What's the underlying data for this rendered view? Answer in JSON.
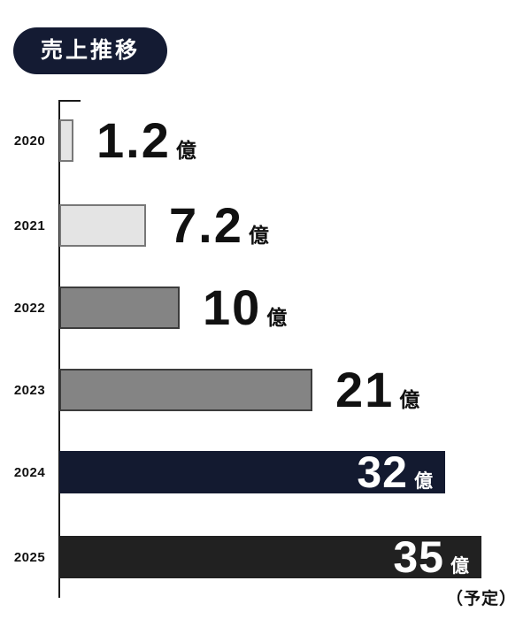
{
  "title_badge": {
    "label": "売上推移"
  },
  "footnote": "（予定）",
  "colors": {
    "badge_bg": "#141b33",
    "badge_text": "#ffffff",
    "bar_light": "#e4e4e4",
    "bar_light_border": "#787878",
    "bar_gray": "#848484",
    "bar_gray_border": "#3c3c3c",
    "bar_navy": "#131a30",
    "bar_black": "#212121",
    "value_text_dark": "#111111",
    "value_text_light": "#ffffff",
    "axis": "#1a1a1a"
  },
  "chart_data": {
    "type": "bar",
    "orientation": "horizontal",
    "title": "売上推移",
    "unit": "億",
    "categories": [
      "2020",
      "2021",
      "2022",
      "2023",
      "2024",
      "2025"
    ],
    "values": [
      1.2,
      7.2,
      10,
      21,
      32,
      35
    ],
    "xlim": [
      0,
      35
    ],
    "grid": false,
    "legend": false,
    "annotations": [
      "（予定）"
    ],
    "rows": [
      {
        "year": "2020",
        "value": 1.2,
        "value_label": "1.2",
        "unit": "億",
        "style": "light",
        "label_position": "outside"
      },
      {
        "year": "2021",
        "value": 7.2,
        "value_label": "7.2",
        "unit": "億",
        "style": "light",
        "label_position": "outside"
      },
      {
        "year": "2022",
        "value": 10,
        "value_label": "10",
        "unit": "億",
        "style": "gray",
        "label_position": "outside"
      },
      {
        "year": "2023",
        "value": 21,
        "value_label": "21",
        "unit": "億",
        "style": "gray",
        "label_position": "outside"
      },
      {
        "year": "2024",
        "value": 32,
        "value_label": "32",
        "unit": "億",
        "style": "navy",
        "label_position": "inside"
      },
      {
        "year": "2025",
        "value": 35,
        "value_label": "35",
        "unit": "億",
        "style": "black",
        "label_position": "inside",
        "note": "（予定）"
      }
    ]
  }
}
